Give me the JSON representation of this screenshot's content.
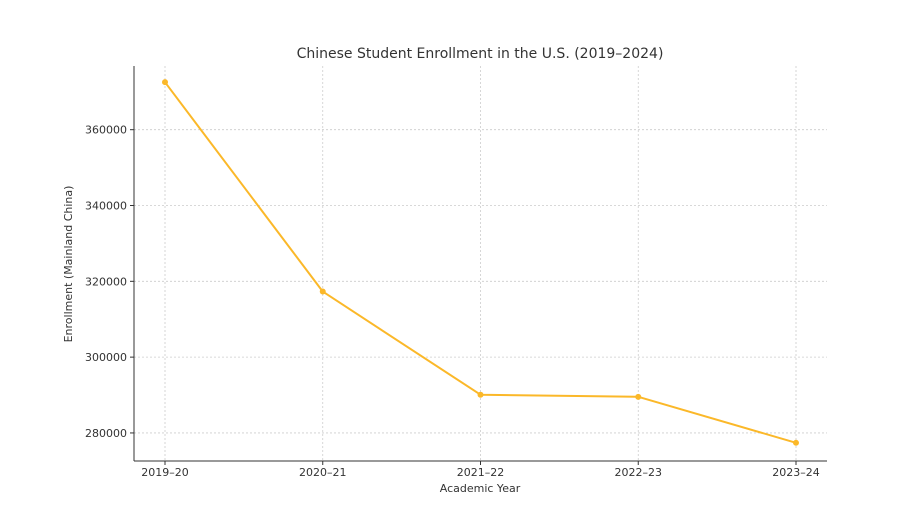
{
  "chart_data": {
    "type": "line",
    "title": "Chinese Student Enrollment in the U.S. (2019–2024)",
    "xlabel": "Academic Year",
    "ylabel": "Enrollment (Mainland China)",
    "categories": [
      "2019–20",
      "2020–21",
      "2021–22",
      "2022–23",
      "2023–24"
    ],
    "series": [
      {
        "values": [
          372532,
          317299,
          290086,
          289526,
          277398
        ],
        "color": "#FBB829"
      }
    ],
    "yticks": [
      280000,
      300000,
      320000,
      340000,
      360000
    ],
    "ylim": [
      272600,
      376800
    ],
    "grid": true,
    "legend": "none"
  }
}
